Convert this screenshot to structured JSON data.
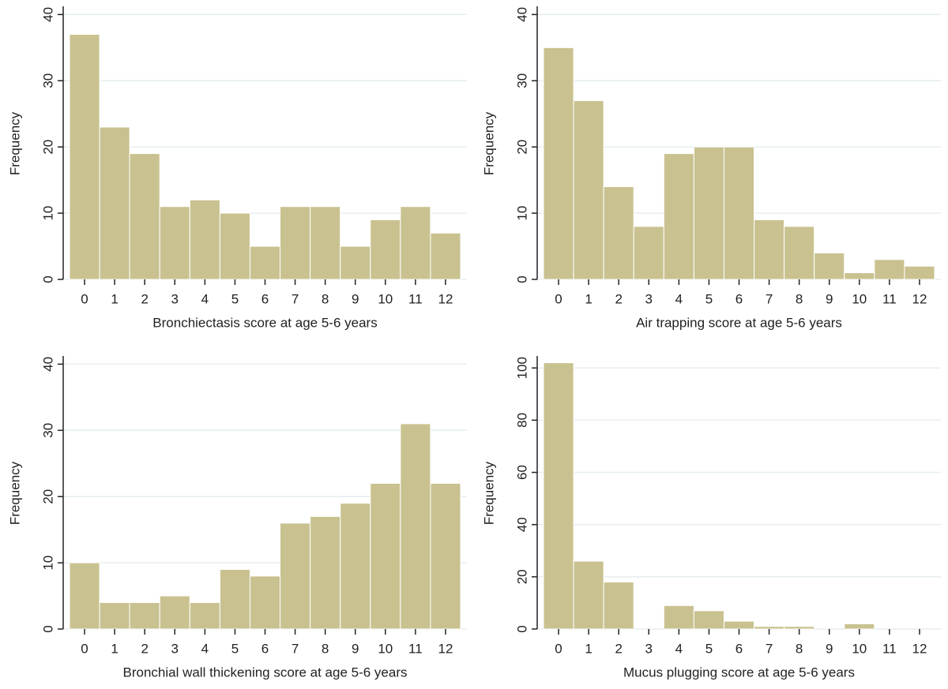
{
  "chart_data": [
    {
      "type": "bar",
      "x_label": "Bronchiectasis score at age 5-6 years",
      "y_label": "Frequency",
      "categories": [
        "0",
        "1",
        "2",
        "3",
        "4",
        "5",
        "6",
        "7",
        "8",
        "9",
        "10",
        "11",
        "12"
      ],
      "values": [
        37,
        23,
        19,
        11,
        12,
        10,
        5,
        11,
        11,
        5,
        9,
        11,
        7
      ],
      "color": "#c9c290",
      "ylim": [
        0,
        41
      ],
      "yticks": [
        0,
        10,
        20,
        30,
        40
      ],
      "grid": true
    },
    {
      "type": "bar",
      "x_label": "Air trapping score at age 5-6 years",
      "y_label": "Frequency",
      "categories": [
        "0",
        "1",
        "2",
        "3",
        "4",
        "5",
        "6",
        "7",
        "8",
        "9",
        "10",
        "11",
        "12"
      ],
      "values": [
        35,
        27,
        14,
        8,
        19,
        20,
        20,
        9,
        8,
        4,
        1,
        3,
        2
      ],
      "color": "#c9c290",
      "ylim": [
        0,
        41
      ],
      "yticks": [
        0,
        10,
        20,
        30,
        40
      ],
      "grid": true
    },
    {
      "type": "bar",
      "x_label": "Bronchial wall thickening score at age 5-6 years",
      "y_label": "Frequency",
      "categories": [
        "0",
        "1",
        "2",
        "3",
        "4",
        "5",
        "6",
        "7",
        "8",
        "9",
        "10",
        "11",
        "12"
      ],
      "values": [
        10,
        4,
        4,
        5,
        4,
        9,
        8,
        16,
        17,
        19,
        22,
        31,
        22
      ],
      "color": "#c9c290",
      "ylim": [
        0,
        41
      ],
      "yticks": [
        0,
        10,
        20,
        30,
        40
      ],
      "grid": true
    },
    {
      "type": "bar",
      "x_label": "Mucus plugging score at age 5-6 years",
      "y_label": "Frequency",
      "categories": [
        "0",
        "1",
        "2",
        "3",
        "4",
        "5",
        "6",
        "7",
        "8",
        "9",
        "10",
        "11",
        "12"
      ],
      "values": [
        102,
        26,
        18,
        0,
        9,
        7,
        3,
        1,
        1,
        0,
        2,
        0,
        0
      ],
      "color": "#c9c290",
      "ylim": [
        0,
        104
      ],
      "yticks": [
        0,
        20,
        40,
        60,
        80,
        100
      ],
      "grid": true
    }
  ]
}
